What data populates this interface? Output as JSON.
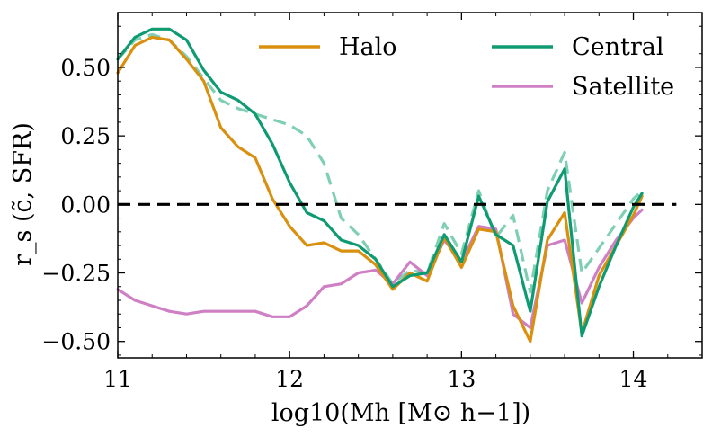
{
  "chart_data": {
    "type": "line",
    "xlabel": "log10(Mh [M⊙ h−1])",
    "ylabel": "r_s (c̃, SFR)",
    "xlim": [
      11.0,
      14.4
    ],
    "ylim": [
      -0.56,
      0.7
    ],
    "x_ticks": [
      11,
      12,
      13,
      14
    ],
    "x_tick_labels": [
      "11",
      "12",
      "13",
      "14"
    ],
    "y_ticks": [
      -0.5,
      -0.25,
      0.0,
      0.25,
      0.5
    ],
    "y_tick_labels": [
      "−0.50",
      "−0.25",
      "0.00",
      "0.25",
      "0.50"
    ],
    "reference_line": {
      "y": 0.0,
      "color": "#000000",
      "style": "dashed"
    },
    "x": [
      11.0,
      11.1,
      11.2,
      11.3,
      11.4,
      11.5,
      11.6,
      11.7,
      11.8,
      11.9,
      12.0,
      12.1,
      12.2,
      12.3,
      12.4,
      12.5,
      12.6,
      12.7,
      12.8,
      12.9,
      13.0,
      13.1,
      13.2,
      13.3,
      13.4,
      13.5,
      13.6,
      13.7,
      13.8,
      13.9,
      14.0,
      14.05
    ],
    "series": [
      {
        "name": "Halo",
        "color": "#d9900e",
        "style": "solid",
        "values": [
          0.48,
          0.58,
          0.61,
          0.6,
          0.53,
          0.45,
          0.28,
          0.21,
          0.17,
          0.02,
          -0.08,
          -0.15,
          -0.14,
          -0.17,
          -0.17,
          -0.22,
          -0.31,
          -0.25,
          -0.28,
          -0.12,
          -0.23,
          -0.09,
          -0.1,
          -0.37,
          -0.5,
          -0.13,
          -0.03,
          -0.47,
          -0.26,
          -0.15,
          -0.04,
          0.03
        ]
      },
      {
        "name": "Central",
        "color": "#0f9b72",
        "style": "solid",
        "values": [
          0.53,
          0.61,
          0.64,
          0.64,
          0.6,
          0.49,
          0.41,
          0.38,
          0.33,
          0.22,
          0.08,
          -0.03,
          -0.06,
          -0.13,
          -0.15,
          -0.2,
          -0.3,
          -0.26,
          -0.25,
          -0.11,
          -0.21,
          0.03,
          -0.11,
          -0.15,
          -0.39,
          0.01,
          0.13,
          -0.48,
          -0.3,
          -0.15,
          -0.01,
          0.04
        ]
      },
      {
        "name": "Central (dashed)",
        "color": "#7fcfb3",
        "style": "dashed",
        "values": [
          0.53,
          0.6,
          0.62,
          0.6,
          0.54,
          0.46,
          0.38,
          0.35,
          0.33,
          0.31,
          0.29,
          0.25,
          0.15,
          -0.05,
          -0.11,
          -0.2,
          -0.29,
          -0.24,
          -0.25,
          -0.07,
          -0.18,
          0.05,
          -0.12,
          -0.04,
          -0.32,
          0.05,
          0.19,
          -0.25,
          -0.16,
          -0.07,
          0.02,
          0.05
        ]
      },
      {
        "name": "Satellite",
        "color": "#cf7fc4",
        "style": "solid",
        "values": [
          -0.31,
          -0.35,
          -0.37,
          -0.39,
          -0.4,
          -0.39,
          -0.39,
          -0.39,
          -0.39,
          -0.41,
          -0.41,
          -0.37,
          -0.3,
          -0.29,
          -0.25,
          -0.24,
          -0.29,
          -0.21,
          -0.26,
          -0.13,
          -0.21,
          -0.08,
          -0.09,
          -0.4,
          -0.45,
          -0.15,
          -0.13,
          -0.36,
          -0.23,
          -0.13,
          -0.05,
          -0.02
        ]
      }
    ],
    "legend": {
      "position": "top-right",
      "entries": [
        {
          "label": "Halo",
          "color": "#d9900e"
        },
        {
          "label": "Central",
          "color": "#0f9b72"
        },
        {
          "label": "Satellite",
          "color": "#cf7fc4"
        }
      ]
    }
  }
}
